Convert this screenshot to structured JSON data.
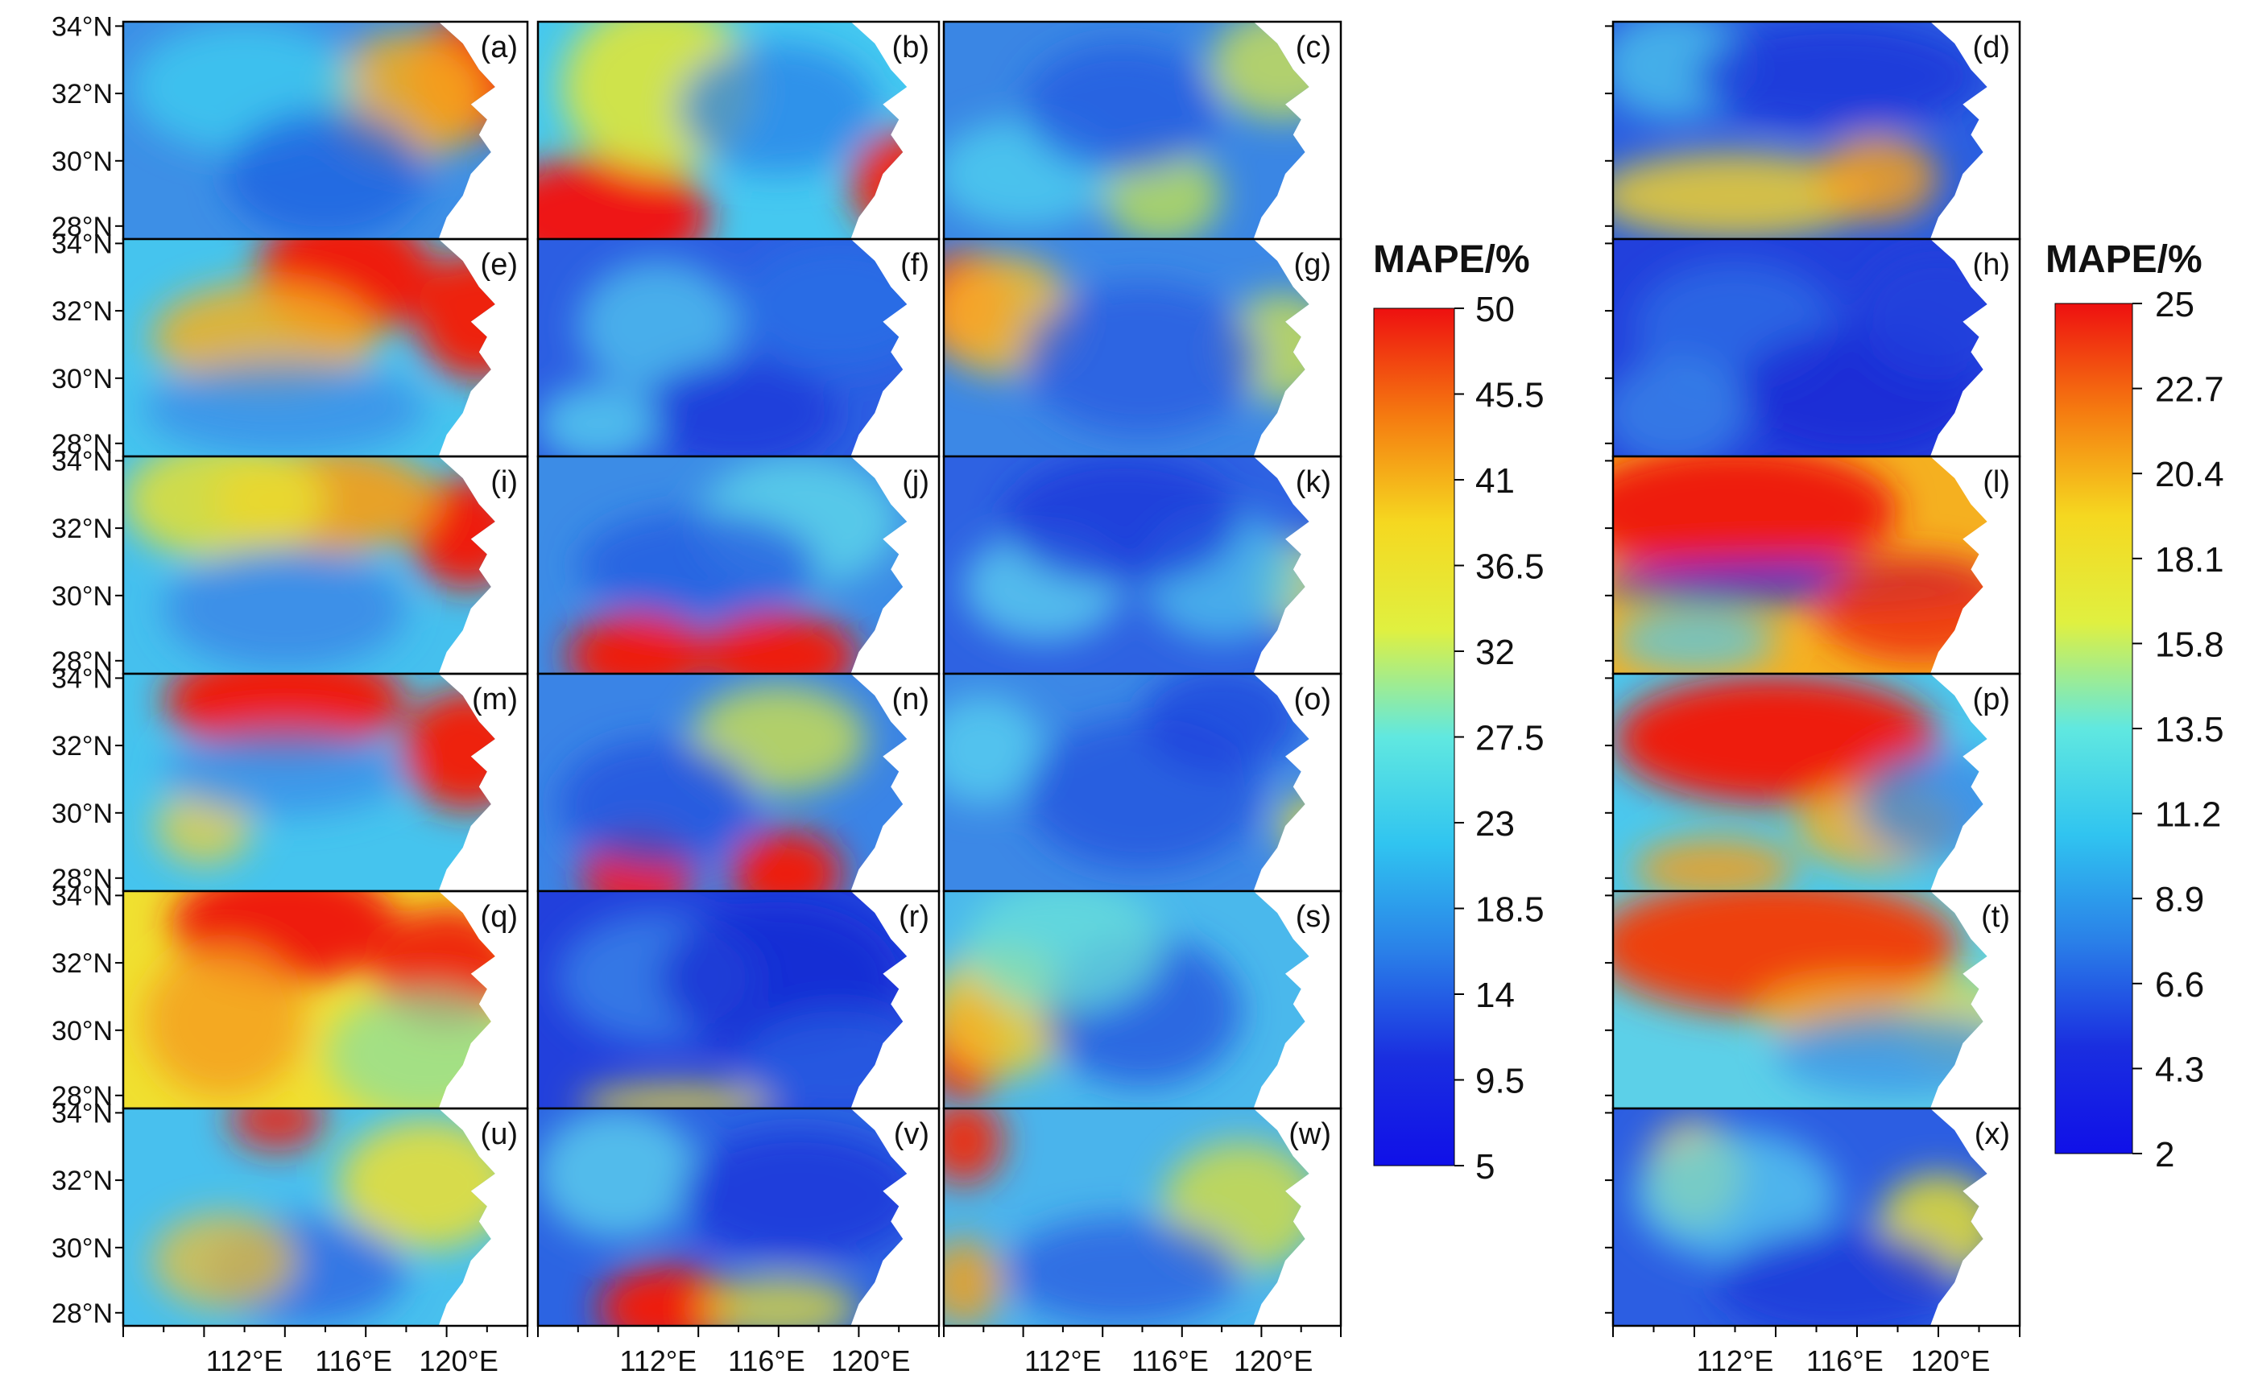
{
  "figure": {
    "lat_labels": [
      "34°N",
      "32°N",
      "30°N",
      "28°N"
    ],
    "lon_labels": [
      "112°E",
      "116°E",
      "120°E"
    ],
    "panels": [
      {
        "label": "(a)",
        "field": {
          "bg": "#3d8fe6",
          "blobs": [
            {
              "c": "#f02a10",
              "v": 0.6
            },
            {
              "c": "#f5b020",
              "v": 0.4
            },
            {
              "c": "#3fd0f0",
              "v": 0.3
            },
            {
              "c": "#1e5fe0",
              "v": 0.3
            }
          ]
        }
      },
      {
        "label": "(b)",
        "field": {
          "bg": "#45c8f0",
          "blobs": [
            {
              "c": "#ee1515",
              "v": 0.7
            },
            {
              "c": "#ee2a15",
              "v": 0.6
            },
            {
              "c": "#e8e830",
              "v": 0.4
            },
            {
              "c": "#2a80e8",
              "v": 0.3
            }
          ]
        }
      },
      {
        "label": "(c)",
        "field": {
          "bg": "#3a86e4",
          "blobs": [
            {
              "c": "#d8e845",
              "v": 0.3
            },
            {
              "c": "#c8e848",
              "v": 0.3
            },
            {
              "c": "#50d6f0",
              "v": 0.3
            },
            {
              "c": "#2458e0",
              "v": 0.3
            }
          ]
        }
      },
      {
        "label": "(d)",
        "field": {
          "bg": "#2a5ee0",
          "blobs": [
            {
              "c": "#f0d030",
              "v": 0.4
            },
            {
              "c": "#f5a020",
              "v": 0.4
            },
            {
              "c": "#4ec8ec",
              "v": 0.3
            },
            {
              "c": "#1a30d8",
              "v": 0.3
            }
          ]
        }
      },
      {
        "label": "(e)",
        "field": {
          "bg": "#45c4ee",
          "blobs": [
            {
              "c": "#ee1a10",
              "v": 0.7
            },
            {
              "c": "#ee2010",
              "v": 0.7
            },
            {
              "c": "#f5b020",
              "v": 0.4
            },
            {
              "c": "#3a8ae8",
              "v": 0.3
            }
          ]
        }
      },
      {
        "label": "(f)",
        "field": {
          "bg": "#2c5ee2",
          "blobs": [
            {
              "c": "#52c8ee",
              "v": 0.3
            },
            {
              "c": "#1a34d8",
              "v": 0.3
            },
            {
              "c": "#5ad8f0",
              "v": 0.3
            },
            {
              "c": "#2a70e6",
              "v": 0.3
            }
          ]
        }
      },
      {
        "label": "(g)",
        "field": {
          "bg": "#3c88e6",
          "blobs": [
            {
              "c": "#ee1a10",
              "v": 0.6
            },
            {
              "c": "#f5c030",
              "v": 0.4
            },
            {
              "c": "#d8e840",
              "v": 0.3
            },
            {
              "c": "#2a58e0",
              "v": 0.3
            }
          ]
        }
      },
      {
        "label": "(h)",
        "field": {
          "bg": "#2240dc",
          "blobs": [
            {
              "c": "#2e70e6",
              "v": 0.3
            },
            {
              "c": "#1a28d4",
              "v": 0.3
            },
            {
              "c": "#3a8ae8",
              "v": 0.3
            },
            {
              "c": "#2040dc",
              "v": 0.3
            }
          ]
        }
      },
      {
        "label": "(i)",
        "field": {
          "bg": "#45c0ee",
          "blobs": [
            {
              "c": "#ee1a10",
              "v": 0.7
            },
            {
              "c": "#f0a020",
              "v": 0.5
            },
            {
              "c": "#e8e030",
              "v": 0.4
            },
            {
              "c": "#3a80e6",
              "v": 0.3
            }
          ]
        }
      },
      {
        "label": "(j)",
        "field": {
          "bg": "#3c8ce6",
          "blobs": [
            {
              "c": "#ee1a10",
              "v": 0.7
            },
            {
              "c": "#ee1a10",
              "v": 0.7
            },
            {
              "c": "#60dcea",
              "v": 0.3
            },
            {
              "c": "#2458e0",
              "v": 0.3
            }
          ]
        }
      },
      {
        "label": "(k)",
        "field": {
          "bg": "#2e62e2",
          "blobs": [
            {
              "c": "#60d8f0",
              "v": 0.3
            },
            {
              "c": "#e0e838",
              "v": 0.3
            },
            {
              "c": "#50c4ee",
              "v": 0.3
            },
            {
              "c": "#1a34d8",
              "v": 0.3
            }
          ]
        }
      },
      {
        "label": "(l)",
        "field": {
          "bg": "#f5b020",
          "blobs": [
            {
              "c": "#ee1a10",
              "v": 0.8
            },
            {
              "c": "#1a30d8",
              "v": 0.4
            },
            {
              "c": "#ee3010",
              "v": 0.4
            },
            {
              "c": "#50c8ee",
              "v": 0.3
            }
          ]
        }
      },
      {
        "label": "(m)",
        "field": {
          "bg": "#45c4ee",
          "blobs": [
            {
              "c": "#ee1a10",
              "v": 0.8
            },
            {
              "c": "#ee2010",
              "v": 0.7
            },
            {
              "c": "#f5d030",
              "v": 0.3
            },
            {
              "c": "#3a8ae8",
              "v": 0.3
            }
          ]
        }
      },
      {
        "label": "(n)",
        "field": {
          "bg": "#3a84e6",
          "blobs": [
            {
              "c": "#ee1a10",
              "v": 0.7
            },
            {
              "c": "#ee1a10",
              "v": 0.7
            },
            {
              "c": "#d8e840",
              "v": 0.3
            },
            {
              "c": "#2250de",
              "v": 0.3
            }
          ]
        }
      },
      {
        "label": "(o)",
        "field": {
          "bg": "#3c88e6",
          "blobs": [
            {
              "c": "#5ad6f0",
              "v": 0.3
            },
            {
              "c": "#2452de",
              "v": 0.3
            },
            {
              "c": "#f0e030",
              "v": 0.3
            },
            {
              "c": "#1e40dc",
              "v": 0.3
            }
          ]
        }
      },
      {
        "label": "(p)",
        "field": {
          "bg": "#4ac8ee",
          "blobs": [
            {
              "c": "#ee1a10",
              "v": 0.8
            },
            {
              "c": "#f5b020",
              "v": 0.4
            },
            {
              "c": "#f0a020",
              "v": 0.4
            },
            {
              "c": "#3a84e6",
              "v": 0.3
            }
          ]
        }
      },
      {
        "label": "(q)",
        "field": {
          "bg": "#f0e030",
          "blobs": [
            {
              "c": "#ee1a10",
              "v": 0.7
            },
            {
              "c": "#ee2a10",
              "v": 0.6
            },
            {
              "c": "#f5a020",
              "v": 0.4
            },
            {
              "c": "#8ae0a0",
              "v": 0.3
            }
          ]
        }
      },
      {
        "label": "(r)",
        "field": {
          "bg": "#2240dc",
          "blobs": [
            {
              "c": "#3a8ae8",
              "v": 0.3
            },
            {
              "c": "#1428d2",
              "v": 0.3
            },
            {
              "c": "#f0e030",
              "v": 0.3
            },
            {
              "c": "#2a60e2",
              "v": 0.3
            }
          ]
        }
      },
      {
        "label": "(s)",
        "field": {
          "bg": "#4ab8ec",
          "blobs": [
            {
              "c": "#ee1a10",
              "v": 0.6
            },
            {
              "c": "#f0d030",
              "v": 0.4
            },
            {
              "c": "#2450de",
              "v": 0.3
            },
            {
              "c": "#6ae0d8",
              "v": 0.3
            }
          ]
        }
      },
      {
        "label": "(t)",
        "field": {
          "bg": "#5cd0e8",
          "blobs": [
            {
              "c": "#ee4010",
              "v": 0.8
            },
            {
              "c": "#f0b020",
              "v": 0.4
            },
            {
              "c": "#e8e030",
              "v": 0.3
            },
            {
              "c": "#3a90e8",
              "v": 0.3
            }
          ]
        }
      },
      {
        "label": "(u)",
        "field": {
          "bg": "#48c0ee",
          "blobs": [
            {
              "c": "#f0e030",
              "v": 0.4
            },
            {
              "c": "#ee2010",
              "v": 0.4
            },
            {
              "c": "#2c60e2",
              "v": 0.3
            },
            {
              "c": "#f0c030",
              "v": 0.3
            }
          ]
        }
      },
      {
        "label": "(v)",
        "field": {
          "bg": "#2c64e2",
          "blobs": [
            {
              "c": "#ee1a10",
              "v": 0.7
            },
            {
              "c": "#e8e030",
              "v": 0.3
            },
            {
              "c": "#60d8ee",
              "v": 0.3
            },
            {
              "c": "#1a30d8",
              "v": 0.3
            }
          ]
        }
      },
      {
        "label": "(w)",
        "field": {
          "bg": "#4ab4ec",
          "blobs": [
            {
              "c": "#ee2a10",
              "v": 0.5
            },
            {
              "c": "#f0a020",
              "v": 0.4
            },
            {
              "c": "#e0e030",
              "v": 0.3
            },
            {
              "c": "#2a5ae0",
              "v": 0.3
            }
          ]
        }
      },
      {
        "label": "(x)",
        "field": {
          "bg": "#2c5ee2",
          "blobs": [
            {
              "c": "#f0d030",
              "v": 0.4
            },
            {
              "c": "#e8e030",
              "v": 0.4
            },
            {
              "c": "#5ad0f0",
              "v": 0.3
            },
            {
              "c": "#1a34d8",
              "v": 0.3
            }
          ]
        }
      }
    ]
  },
  "colorbar_left": {
    "title": "MAPE/%",
    "ticks": [
      "50",
      "45.5",
      "41",
      "36.5",
      "32",
      "27.5",
      "23",
      "18.5",
      "14",
      "9.5",
      "5"
    ]
  },
  "colorbar_right": {
    "title": "MAPE/%",
    "ticks": [
      "25",
      "22.7",
      "20.4",
      "18.1",
      "15.8",
      "13.5",
      "11.2",
      "8.9",
      "6.6",
      "4.3",
      "2"
    ]
  },
  "colormap_stops": [
    "#ee1010",
    "#f57a10",
    "#f5d820",
    "#e0f040",
    "#60e8e0",
    "#30c4f0",
    "#2a80e8",
    "#1a2ee0",
    "#1010e8"
  ]
}
